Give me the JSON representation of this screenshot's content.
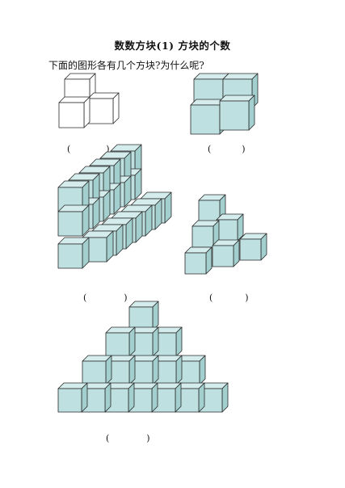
{
  "worksheet": {
    "title": "数数方块(1)  方块的个数",
    "question": "下面的图形各有几个方块?为什么呢?"
  },
  "colors": {
    "cube_fill": "#bfe0e0",
    "cube_top": "#d4ecec",
    "cube_side": "#a3cfcf",
    "outline": "#2a2a2a",
    "plain_fill": "#ffffff"
  },
  "answer_blanks": [
    {
      "open": "(",
      "close": ")",
      "value": ""
    },
    {
      "open": "(",
      "close": ")",
      "value": ""
    },
    {
      "open": "(",
      "close": ")",
      "value": ""
    },
    {
      "open": "(",
      "close": ")",
      "value": ""
    },
    {
      "open": "(",
      "close": ")",
      "value": ""
    }
  ]
}
